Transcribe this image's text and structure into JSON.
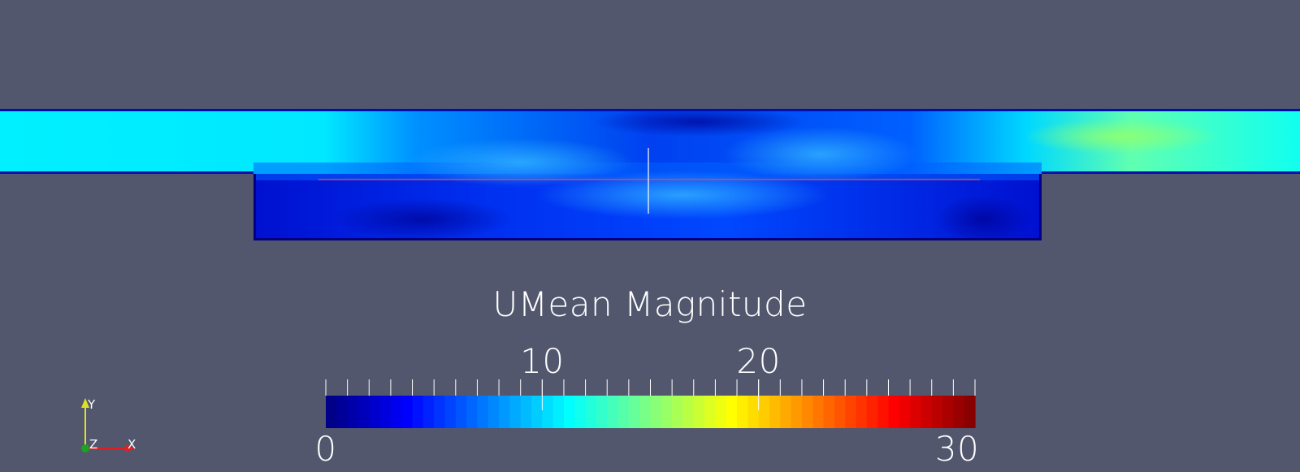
{
  "legend": {
    "title": "UMean Magnitude",
    "min_label": "0",
    "max_label": "30",
    "range": [
      0,
      30
    ],
    "major_ticks": [
      {
        "value": 10,
        "label": "10"
      },
      {
        "value": 20,
        "label": "20"
      }
    ],
    "minor_tick_count": 31,
    "colormap": [
      "#000080",
      "#0000ff",
      "#0080ff",
      "#00ffff",
      "#80ff80",
      "#ffff00",
      "#ff8000",
      "#ff0000",
      "#800000"
    ],
    "color_bands": 60
  },
  "orientation_axes": {
    "x_label": "X",
    "y_label": "Y",
    "z_label": "Z",
    "x_color": "#e02020",
    "y_color": "#e0e020",
    "z_color": "#20a020"
  },
  "colors": {
    "background": "#52576e",
    "crosshair": "#ffffff",
    "probe_line": "#ff4040"
  }
}
